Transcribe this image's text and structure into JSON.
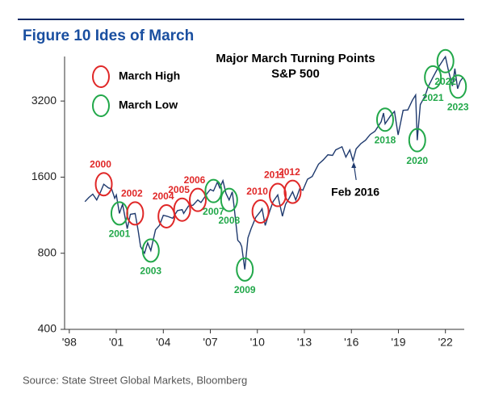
{
  "chart_data": {
    "type": "line",
    "figure_title": "Figure 10   Ides of March",
    "title": "Major March Turning Points",
    "subtitle": "S&P 500",
    "source": "Source: State Street Global Markets, Bloomberg",
    "log_scale": true,
    "grid": false,
    "xlim": [
      1997.7,
      2023.2
    ],
    "xticks": [
      {
        "value": 1998,
        "label": "'98"
      },
      {
        "value": 2001,
        "label": "'01"
      },
      {
        "value": 2004,
        "label": "'04"
      },
      {
        "value": 2007,
        "label": "'07"
      },
      {
        "value": 2010,
        "label": "'10"
      },
      {
        "value": 2013,
        "label": "'13"
      },
      {
        "value": 2016,
        "label": "'16"
      },
      {
        "value": 2019,
        "label": "'19"
      },
      {
        "value": 2022,
        "label": "'22"
      }
    ],
    "ylim": [
      400,
      4800
    ],
    "yticks": [
      400,
      800,
      1600,
      3200
    ],
    "x": [
      1999.0,
      1999.25,
      1999.5,
      1999.75,
      2000.0,
      2000.2,
      2000.5,
      2000.7,
      2000.9,
      2001.0,
      2001.2,
      2001.4,
      2001.7,
      2001.9,
      2002.2,
      2002.4,
      2002.55,
      2002.8,
      2003.0,
      2003.2,
      2003.5,
      2003.75,
      2004.0,
      2004.25,
      2004.6,
      2004.9,
      2005.2,
      2005.3,
      2005.6,
      2005.9,
      2006.2,
      2006.4,
      2006.8,
      2007.0,
      2007.2,
      2007.45,
      2007.6,
      2007.8,
      2008.0,
      2008.2,
      2008.4,
      2008.5,
      2008.75,
      2008.9,
      2009.0,
      2009.2,
      2009.4,
      2009.6,
      2009.9,
      2010.2,
      2010.3,
      2010.5,
      2010.8,
      2011.0,
      2011.3,
      2011.6,
      2011.8,
      2012.0,
      2012.25,
      2012.45,
      2012.7,
      2012.9,
      2013.2,
      2013.5,
      2013.9,
      2014.2,
      2014.5,
      2014.8,
      2015.0,
      2015.4,
      2015.65,
      2015.9,
      2016.1,
      2016.3,
      2016.6,
      2016.9,
      2017.2,
      2017.5,
      2017.9,
      2018.05,
      2018.15,
      2018.5,
      2018.75,
      2018.98,
      2019.3,
      2019.6,
      2019.9,
      2020.1,
      2020.2,
      2020.4,
      2020.7,
      2020.9,
      2021.2,
      2021.5,
      2021.9,
      2022.0,
      2022.2,
      2022.45,
      2022.6,
      2022.78,
      2022.95,
      2023.1
    ],
    "series": [
      {
        "name": "S&P 500",
        "color": "#1f3a6e",
        "values": [
          1280,
          1330,
          1370,
          1300,
          1400,
          1500,
          1450,
          1440,
          1320,
          1360,
          1150,
          1250,
          1000,
          1140,
          1150,
          980,
          850,
          800,
          880,
          820,
          990,
          1030,
          1130,
          1120,
          1100,
          1180,
          1190,
          1150,
          1230,
          1240,
          1300,
          1270,
          1380,
          1430,
          1410,
          1530,
          1450,
          1550,
          1380,
          1300,
          1400,
          1250,
          900,
          880,
          850,
          690,
          920,
          1000,
          1110,
          1170,
          1200,
          1030,
          1180,
          1280,
          1360,
          1120,
          1250,
          1310,
          1400,
          1300,
          1440,
          1420,
          1570,
          1610,
          1800,
          1870,
          1960,
          1950,
          2050,
          2110,
          1920,
          2050,
          1860,
          2070,
          2170,
          2240,
          2360,
          2430,
          2650,
          2870,
          2600,
          2800,
          2910,
          2350,
          2940,
          2950,
          3230,
          3380,
          2240,
          3100,
          3350,
          3650,
          3970,
          4300,
          4700,
          4790,
          4200,
          3670,
          4300,
          3580,
          3840,
          3950
        ]
      }
    ],
    "legend": [
      {
        "label": "March High",
        "color": "#e02828"
      },
      {
        "label": "March Low",
        "color": "#22a84a"
      }
    ],
    "annotations": [
      {
        "label": "2000",
        "x": 2000.2,
        "y": 1500,
        "group": 0
      },
      {
        "label": "2001",
        "x": 2001.2,
        "y": 1150,
        "group": 1
      },
      {
        "label": "2002",
        "x": 2002.2,
        "y": 1150,
        "group": 0
      },
      {
        "label": "2003",
        "x": 2003.2,
        "y": 820,
        "group": 1
      },
      {
        "label": "2004",
        "x": 2004.2,
        "y": 1120,
        "group": 0
      },
      {
        "label": "2005",
        "x": 2005.2,
        "y": 1190,
        "group": 0
      },
      {
        "label": "2006",
        "x": 2006.2,
        "y": 1300,
        "group": 0
      },
      {
        "label": "2007",
        "x": 2007.2,
        "y": 1410,
        "group": 1
      },
      {
        "label": "2008",
        "x": 2008.2,
        "y": 1300,
        "group": 1
      },
      {
        "label": "2009",
        "x": 2009.2,
        "y": 690,
        "group": 1
      },
      {
        "label": "2010",
        "x": 2010.2,
        "y": 1170,
        "group": 0
      },
      {
        "label": "2011",
        "x": 2011.3,
        "y": 1360,
        "group": 0
      },
      {
        "label": "2012",
        "x": 2012.25,
        "y": 1400,
        "group": 0
      },
      {
        "label": "2018",
        "x": 2018.15,
        "y": 2700,
        "group": 1
      },
      {
        "label": "2020",
        "x": 2020.2,
        "y": 2240,
        "group": 1
      },
      {
        "label": "2021",
        "x": 2021.2,
        "y": 3970,
        "group": 1
      },
      {
        "label": "2022",
        "x": 2022.0,
        "y": 4600,
        "group": 1
      },
      {
        "label": "2023",
        "x": 2022.8,
        "y": 3650,
        "group": 1
      }
    ],
    "callout": {
      "label": "Feb 2016",
      "x": 2016.1,
      "y": 1860
    }
  }
}
